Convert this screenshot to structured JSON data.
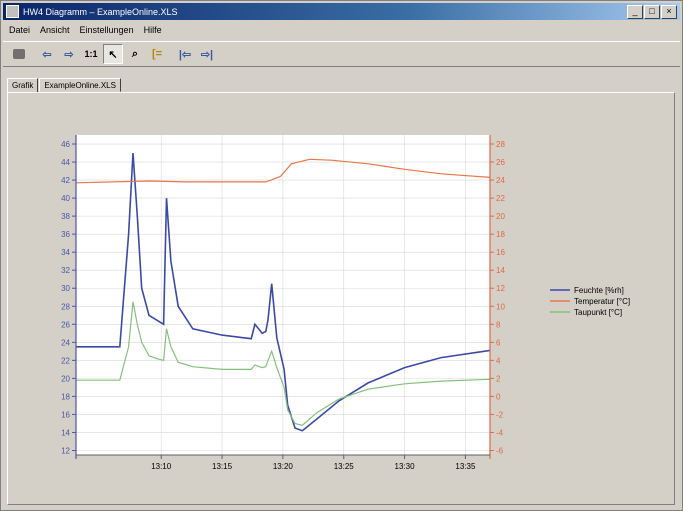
{
  "window": {
    "title": "HW4 Diagramm – ExampleOnline.XLS"
  },
  "window_buttons": [
    "_",
    "□",
    "×"
  ],
  "menu": [
    "Datei",
    "Ansicht",
    "Einstellungen",
    "Hilfe"
  ],
  "tabs": [
    "Grafik",
    "ExampleOnline.XLS"
  ],
  "colors": {
    "feuchte": "#3b4aa8",
    "temperatur": "#e8774a",
    "taupunkt": "#86c07e",
    "left_axis": "#4a56a8",
    "right_axis": "#e06a40",
    "plot_bg": "#ffffff",
    "grid": "#d8d8d8"
  },
  "chart_data": {
    "type": "line",
    "xlim": [
      13.05,
      13.617
    ],
    "x_ticks": [
      13.1667,
      13.25,
      13.3333,
      13.4167,
      13.5,
      13.5833
    ],
    "x_tick_labels": [
      "13:10",
      "13:15",
      "13:20",
      "13:25",
      "13:30",
      "13:35"
    ],
    "y_left": {
      "range": [
        11.5,
        47
      ],
      "ticks": [
        12,
        14,
        16,
        18,
        20,
        22,
        24,
        26,
        28,
        30,
        32,
        34,
        36,
        38,
        40,
        42,
        44,
        46
      ]
    },
    "y_right": {
      "range": [
        -6.5,
        29
      ],
      "ticks": [
        -6,
        -4,
        -2,
        0,
        2,
        4,
        6,
        8,
        10,
        12,
        14,
        16,
        18,
        20,
        22,
        24,
        26,
        28
      ]
    },
    "legend": "right",
    "series": [
      {
        "name": "Feuchte [%rh]",
        "axis": "left",
        "points": [
          [
            13.05,
            23.5
          ],
          [
            13.11,
            23.5
          ],
          [
            13.122,
            36
          ],
          [
            13.128,
            45
          ],
          [
            13.134,
            38
          ],
          [
            13.14,
            30
          ],
          [
            13.15,
            27
          ],
          [
            13.16,
            26.5
          ],
          [
            13.17,
            26
          ],
          [
            13.174,
            40
          ],
          [
            13.18,
            33
          ],
          [
            13.19,
            28
          ],
          [
            13.21,
            25.5
          ],
          [
            13.25,
            24.8
          ],
          [
            13.28,
            24.5
          ],
          [
            13.29,
            24.4
          ],
          [
            13.295,
            26
          ],
          [
            13.305,
            25
          ],
          [
            13.31,
            25.2
          ],
          [
            13.313,
            26.5
          ],
          [
            13.318,
            30.5
          ],
          [
            13.325,
            24.5
          ],
          [
            13.335,
            21
          ],
          [
            13.34,
            17
          ],
          [
            13.35,
            14.5
          ],
          [
            13.36,
            14.2
          ],
          [
            13.38,
            15.5
          ],
          [
            13.41,
            17.5
          ],
          [
            13.45,
            19.5
          ],
          [
            13.5,
            21.2
          ],
          [
            13.55,
            22.3
          ],
          [
            13.617,
            23.1
          ]
        ]
      },
      {
        "name": "Temperatur [°C]",
        "axis": "right",
        "points": [
          [
            13.05,
            23.7
          ],
          [
            13.15,
            23.9
          ],
          [
            13.2,
            23.8
          ],
          [
            13.31,
            23.8
          ],
          [
            13.33,
            24.4
          ],
          [
            13.345,
            25.8
          ],
          [
            13.37,
            26.3
          ],
          [
            13.4,
            26.2
          ],
          [
            13.45,
            25.8
          ],
          [
            13.5,
            25.2
          ],
          [
            13.55,
            24.7
          ],
          [
            13.617,
            24.3
          ]
        ]
      },
      {
        "name": "Taupunkt [°C]",
        "axis": "right",
        "points": [
          [
            13.05,
            1.8
          ],
          [
            13.11,
            1.8
          ],
          [
            13.122,
            5.5
          ],
          [
            13.128,
            10.5
          ],
          [
            13.134,
            8
          ],
          [
            13.14,
            6
          ],
          [
            13.15,
            4.5
          ],
          [
            13.16,
            4.2
          ],
          [
            13.17,
            4.0
          ],
          [
            13.174,
            7.5
          ],
          [
            13.18,
            5.5
          ],
          [
            13.19,
            3.8
          ],
          [
            13.21,
            3.3
          ],
          [
            13.25,
            3.0
          ],
          [
            13.29,
            3.0
          ],
          [
            13.295,
            3.5
          ],
          [
            13.305,
            3.2
          ],
          [
            13.31,
            3.3
          ],
          [
            13.313,
            4.0
          ],
          [
            13.318,
            5.0
          ],
          [
            13.325,
            3.2
          ],
          [
            13.335,
            1.0
          ],
          [
            13.34,
            -1.5
          ],
          [
            13.35,
            -3.0
          ],
          [
            13.36,
            -3.2
          ],
          [
            13.38,
            -1.8
          ],
          [
            13.41,
            -0.3
          ],
          [
            13.45,
            0.8
          ],
          [
            13.5,
            1.4
          ],
          [
            13.55,
            1.7
          ],
          [
            13.617,
            1.9
          ]
        ]
      }
    ]
  }
}
